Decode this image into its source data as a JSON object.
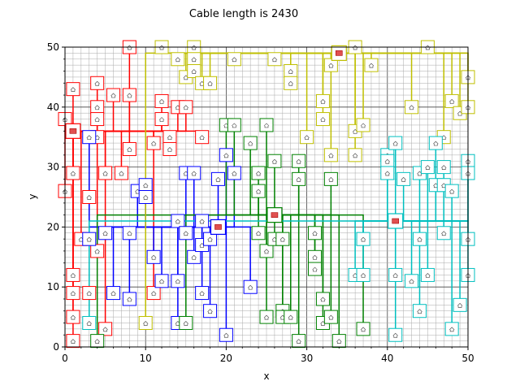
{
  "chart_data": {
    "type": "scatter",
    "title": "Cable length is 2430",
    "xlabel": "x",
    "ylabel": "y",
    "xlim": [
      0,
      50
    ],
    "ylim": [
      0,
      50
    ],
    "xticks": [
      0,
      10,
      20,
      30,
      40,
      50
    ],
    "yticks": [
      0,
      10,
      20,
      30,
      40,
      50
    ],
    "minor_grid": true,
    "series": [
      {
        "color": "#ff0000",
        "hub": [
          1,
          36
        ],
        "houses": [
          [
            1,
            43
          ],
          [
            0,
            38
          ],
          [
            1,
            36
          ],
          [
            4,
            44
          ],
          [
            4,
            40
          ],
          [
            4,
            38
          ],
          [
            6,
            42
          ],
          [
            8,
            42
          ],
          [
            8,
            33
          ],
          [
            4,
            35
          ],
          [
            1,
            29
          ],
          [
            5,
            29
          ],
          [
            7,
            29
          ],
          [
            0,
            26
          ],
          [
            3,
            25
          ],
          [
            2,
            18
          ],
          [
            4,
            16
          ],
          [
            1,
            12
          ],
          [
            1,
            9
          ],
          [
            3,
            9
          ],
          [
            1,
            5
          ],
          [
            1,
            1
          ],
          [
            5,
            3
          ],
          [
            11,
            34
          ],
          [
            12,
            41
          ],
          [
            12,
            38
          ],
          [
            13,
            35
          ],
          [
            13,
            33
          ],
          [
            14,
            40
          ],
          [
            15,
            40
          ],
          [
            17,
            35
          ],
          [
            8,
            50
          ],
          [
            11,
            9
          ]
        ]
      },
      {
        "color": "#0000ff",
        "hub": [
          19,
          20
        ],
        "houses": [
          [
            3,
            35
          ],
          [
            9,
            26
          ],
          [
            10,
            27
          ],
          [
            10,
            25
          ],
          [
            3,
            18
          ],
          [
            5,
            19
          ],
          [
            6,
            9
          ],
          [
            8,
            19
          ],
          [
            8,
            8
          ],
          [
            11,
            15
          ],
          [
            12,
            11
          ],
          [
            14,
            21
          ],
          [
            14,
            11
          ],
          [
            15,
            19
          ],
          [
            15,
            29
          ],
          [
            16,
            29
          ],
          [
            16,
            15
          ],
          [
            17,
            21
          ],
          [
            17,
            17
          ],
          [
            17,
            9
          ],
          [
            18,
            18
          ],
          [
            18,
            6
          ],
          [
            19,
            28
          ],
          [
            20,
            32
          ],
          [
            20,
            2
          ],
          [
            21,
            29
          ],
          [
            23,
            10
          ],
          [
            14,
            4
          ]
        ]
      },
      {
        "color": "#008000",
        "hub": [
          26,
          22
        ],
        "houses": [
          [
            20,
            37
          ],
          [
            21,
            37
          ],
          [
            23,
            34
          ],
          [
            24,
            29
          ],
          [
            24,
            26
          ],
          [
            25,
            37
          ],
          [
            24,
            19
          ],
          [
            25,
            16
          ],
          [
            25,
            5
          ],
          [
            26,
            31
          ],
          [
            26,
            18
          ],
          [
            27,
            18
          ],
          [
            27,
            6
          ],
          [
            27,
            5
          ],
          [
            28,
            5
          ],
          [
            29,
            31
          ],
          [
            29,
            28
          ],
          [
            29,
            1
          ],
          [
            31,
            19
          ],
          [
            31,
            15
          ],
          [
            31,
            13
          ],
          [
            32,
            8
          ],
          [
            32,
            4
          ],
          [
            33,
            28
          ],
          [
            33,
            5
          ],
          [
            34,
            1
          ],
          [
            37,
            3
          ],
          [
            4,
            1
          ],
          [
            15,
            4
          ]
        ]
      },
      {
        "color": "#bfbf00",
        "hub": [
          34,
          49
        ],
        "houses": [
          [
            12,
            50
          ],
          [
            14,
            48
          ],
          [
            15,
            45
          ],
          [
            16,
            50
          ],
          [
            16,
            48
          ],
          [
            16,
            46
          ],
          [
            17,
            44
          ],
          [
            18,
            44
          ],
          [
            21,
            48
          ],
          [
            26,
            48
          ],
          [
            28,
            46
          ],
          [
            28,
            44
          ],
          [
            30,
            35
          ],
          [
            32,
            41
          ],
          [
            32,
            38
          ],
          [
            33,
            47
          ],
          [
            33,
            32
          ],
          [
            36,
            50
          ],
          [
            36,
            36
          ],
          [
            36,
            32
          ],
          [
            37,
            37
          ],
          [
            38,
            47
          ],
          [
            43,
            40
          ],
          [
            45,
            50
          ],
          [
            47,
            35
          ],
          [
            48,
            41
          ],
          [
            49,
            39
          ],
          [
            50,
            45
          ],
          [
            50,
            40
          ],
          [
            10,
            4
          ]
        ]
      },
      {
        "color": "#00bfbf",
        "hub": [
          41,
          21
        ],
        "houses": [
          [
            3,
            4
          ],
          [
            36,
            12
          ],
          [
            37,
            18
          ],
          [
            37,
            12
          ],
          [
            40,
            32
          ],
          [
            40,
            31
          ],
          [
            40,
            29
          ],
          [
            41,
            34
          ],
          [
            41,
            12
          ],
          [
            41,
            2
          ],
          [
            42,
            28
          ],
          [
            43,
            11
          ],
          [
            44,
            29
          ],
          [
            44,
            18
          ],
          [
            44,
            6
          ],
          [
            45,
            30
          ],
          [
            45,
            12
          ],
          [
            46,
            34
          ],
          [
            46,
            27
          ],
          [
            47,
            30
          ],
          [
            47,
            27
          ],
          [
            47,
            19
          ],
          [
            48,
            26
          ],
          [
            48,
            3
          ],
          [
            49,
            7
          ],
          [
            50,
            31
          ],
          [
            50,
            29
          ],
          [
            50,
            18
          ],
          [
            50,
            12
          ]
        ]
      }
    ]
  }
}
